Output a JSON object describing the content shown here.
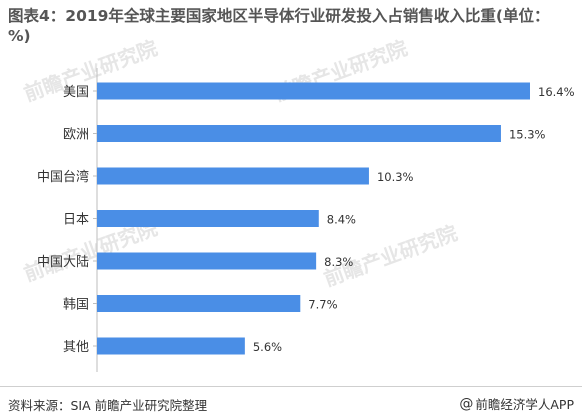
{
  "title": "图表4：2019年全球主要国家地区半导体行业研发投入占销售收入比重(单位：%)",
  "source": "资料来源：SIA 前瞻产业研究院整理",
  "brand": {
    "icon": "@",
    "label": "前瞻经济学人APP"
  },
  "watermarks": [
    "前瞻产业研究院",
    "前瞻产业研究院",
    "前瞻产业研究院",
    "前瞻产业研究院"
  ],
  "colors": {
    "bar": "#4a8ee6",
    "bar_edge": "#3a7bd5",
    "grid": "#bdbdbd"
  },
  "chart_data": {
    "type": "bar",
    "orientation": "horizontal",
    "categories": [
      "美国",
      "欧洲",
      "中国台湾",
      "日本",
      "中国大陆",
      "韩国",
      "其他"
    ],
    "values": [
      16.4,
      15.3,
      10.3,
      8.4,
      8.3,
      7.7,
      5.6
    ],
    "value_labels": [
      "16.4%",
      "15.3%",
      "10.3%",
      "8.4%",
      "8.3%",
      "7.7%",
      "5.6%"
    ],
    "unit": "%",
    "xlim": [
      0,
      16.4
    ],
    "grid": false,
    "legend": "none"
  }
}
